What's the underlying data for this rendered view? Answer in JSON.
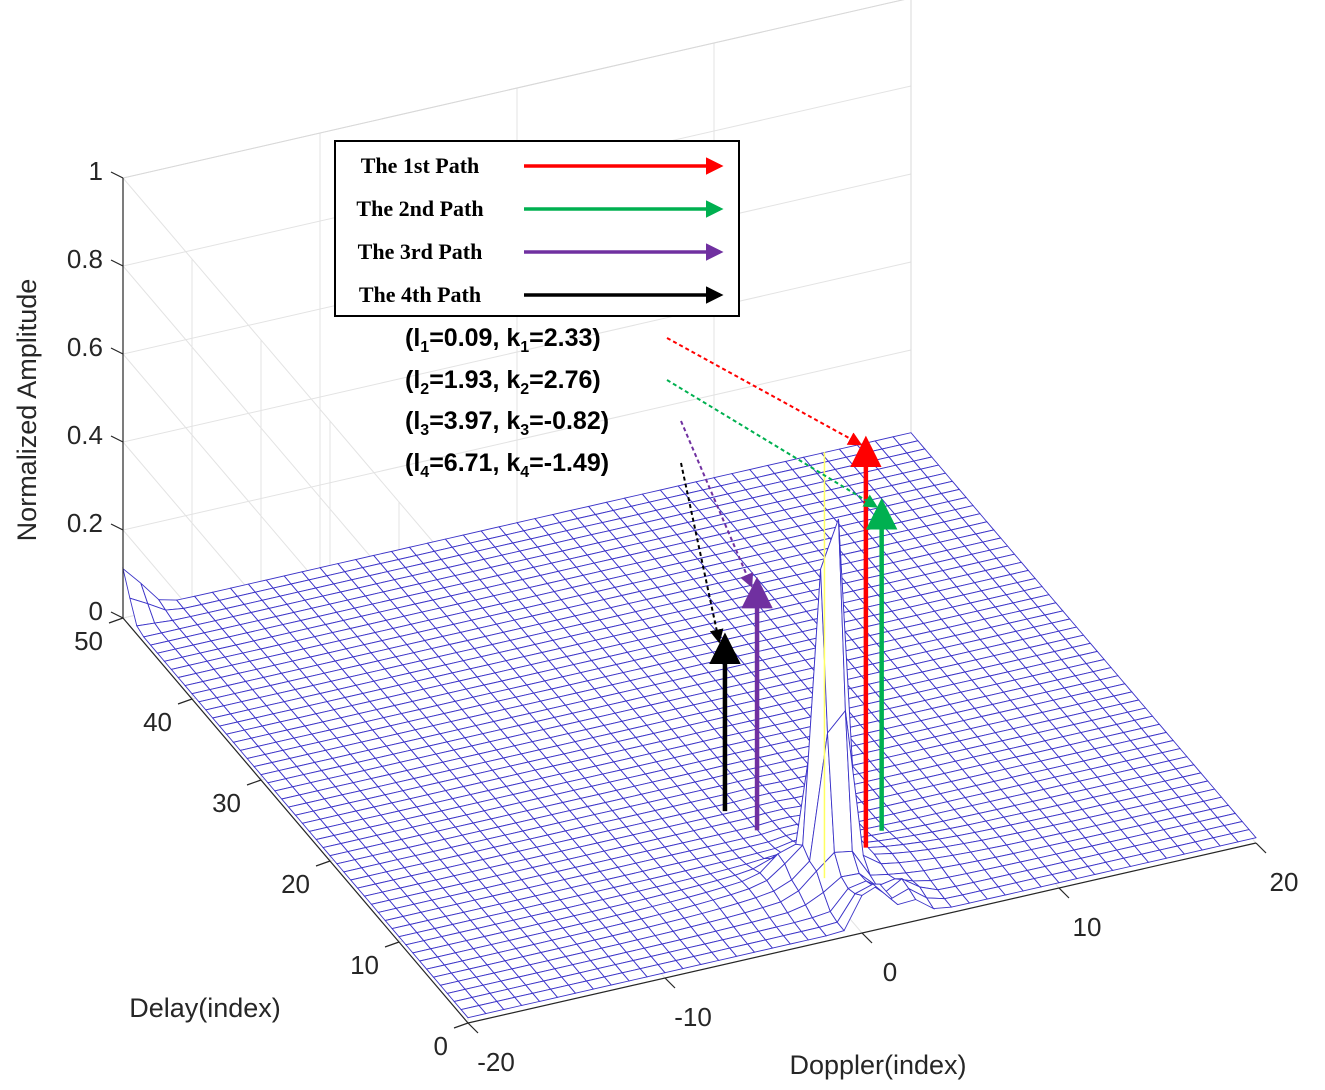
{
  "chart_data": {
    "type": "surface",
    "title": "",
    "zlabel": "Normalized Amplitude",
    "ylabel": "Delay(index)",
    "xlabel": "Doppler(index)",
    "xlim": [
      -20,
      20
    ],
    "ylim": [
      0,
      50
    ],
    "zlim": [
      0,
      1
    ],
    "x_ticks": [
      "-20",
      "-10",
      "0",
      "10",
      "20"
    ],
    "y_ticks": [
      "0",
      "10",
      "20",
      "30",
      "40",
      "50"
    ],
    "z_ticks": [
      "0",
      "0.2",
      "0.4",
      "0.6",
      "0.8",
      "1"
    ],
    "grid": true,
    "surface_color": "#3b33c8",
    "peaks": [
      {
        "doppler": 0.5,
        "delay": 6,
        "amplitude": 1.0
      },
      {
        "doppler": -20,
        "delay": 50,
        "amplitude": 0.1
      }
    ],
    "legend": {
      "placement": "top-center",
      "entries": [
        {
          "label": "The 1st Path",
          "color": "#ff0000"
        },
        {
          "label": "The 2nd Path",
          "color": "#00b050"
        },
        {
          "label": "The 3rd Path",
          "color": "#7030a0"
        },
        {
          "label": "The 4th Path",
          "color": "#000000"
        }
      ]
    },
    "paths": [
      {
        "name": "1",
        "delay_l": 0.09,
        "doppler_k": 2.33,
        "color": "#ff0000"
      },
      {
        "name": "2",
        "delay_l": 1.93,
        "doppler_k": 2.76,
        "color": "#00b050"
      },
      {
        "name": "3",
        "delay_l": 3.97,
        "doppler_k": -0.82,
        "color": "#7030a0"
      },
      {
        "name": "4",
        "delay_l": 6.71,
        "doppler_k": -1.49,
        "color": "#000000"
      }
    ],
    "annotations": [
      {
        "l_label": "l",
        "l_sub": "1",
        "l_val": "=0.09, ",
        "k_label": "k",
        "k_sub": "1",
        "k_val": "=2.33)"
      },
      {
        "l_label": "l",
        "l_sub": "2",
        "l_val": "=1.93, ",
        "k_label": "k",
        "k_sub": "2",
        "k_val": "=2.76)"
      },
      {
        "l_label": "l",
        "l_sub": "3",
        "l_val": "=3.97, ",
        "k_label": "k",
        "k_sub": "3",
        "k_val": "=-0.82)"
      },
      {
        "l_label": "l",
        "l_sub": "4",
        "l_val": "=6.71, ",
        "k_label": "k",
        "k_sub": "4",
        "k_val": "=-1.49)"
      }
    ],
    "annotation_open": "("
  }
}
